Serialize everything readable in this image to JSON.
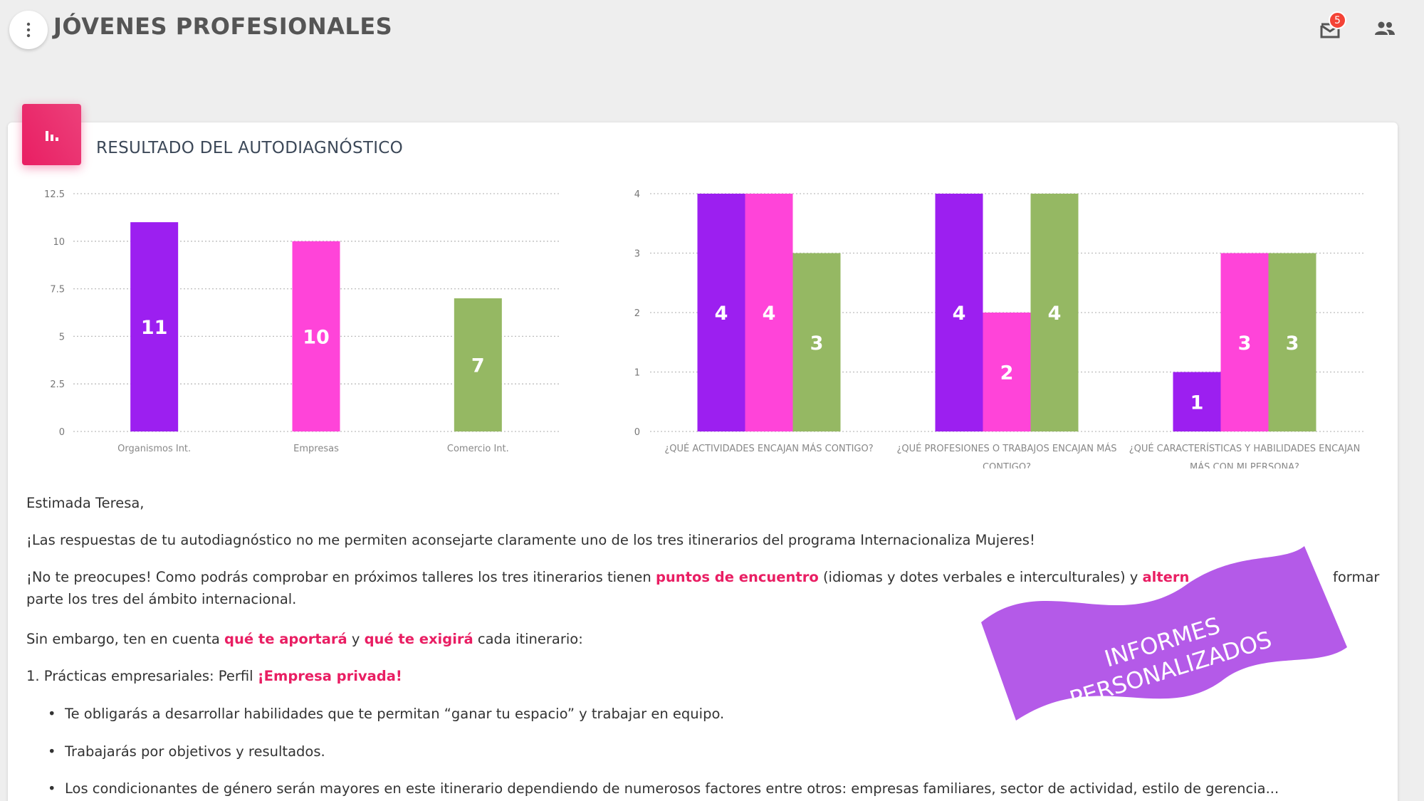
{
  "header": {
    "title": "JÓVENES PROFESIONALES",
    "mail_count": "5"
  },
  "card": {
    "title": "RESULTADO DEL AUTODIAGNÓSTICO"
  },
  "colors": {
    "purple": "#9c1ff0",
    "pink": "#ff44d9",
    "green": "#95b863",
    "accent": "#e91e63",
    "banner": "#b45ae8"
  },
  "chart_data": [
    {
      "type": "bar",
      "categories": [
        "Organismos Int.",
        "Empresas",
        "Comercio Int."
      ],
      "values": [
        11,
        10,
        7
      ],
      "colors": [
        "#9c1ff0",
        "#ff44d9",
        "#95b863"
      ],
      "ylim": [
        0,
        12.5
      ],
      "yticks": [
        "0",
        "2.5",
        "5",
        "7.5",
        "10",
        "12.5"
      ],
      "grid": true
    },
    {
      "type": "bar",
      "categories": [
        "¿QUÉ ACTIVIDADES ENCAJAN MÁS CONTIGO?",
        "¿QUÉ PROFESIONES O TRABAJOS ENCAJAN MÁS CONTIGO?",
        "¿QUÉ CARACTERÍSTICAS Y HABILIDADES ENCAJAN MÁS CON MI PERSONA?"
      ],
      "series": [
        {
          "values": [
            4,
            4,
            1
          ],
          "color": "#9c1ff0"
        },
        {
          "values": [
            4,
            2,
            3
          ],
          "color": "#ff44d9"
        },
        {
          "values": [
            3,
            4,
            3
          ],
          "color": "#95b863"
        }
      ],
      "ylim": [
        0,
        4
      ],
      "yticks": [
        "0",
        "1",
        "2",
        "3",
        "4"
      ],
      "grid": true
    }
  ],
  "letter": {
    "greeting": "Estimada Teresa,",
    "p1": "¡Las respuestas de tu autodiagnóstico no me permiten aconsejarte claramente uno de los tres itinerarios del programa Internacionaliza Mujeres!",
    "p2_a": "¡No te preocupes! Como podrás comprobar en próximos talleres los tres itinerarios tienen ",
    "p2_hl1": "puntos de encuentro",
    "p2_b": " (idiomas y dotes verbales e interculturales) y ",
    "p2_hl2": "altern",
    "p2_c": "formar",
    "p2_line2": "parte los tres del ámbito internacional.",
    "p3_a": "Sin embargo, ten en cuenta ",
    "p3_hl1": "qué te aportará",
    "p3_b": " y ",
    "p3_hl2": "qué te exigirá",
    "p3_c": " cada itinerario:",
    "p4_a": "1. Prácticas empresariales: Perfil ",
    "p4_hl": "¡Empresa privada!",
    "bullets": [
      "Te obligarás a desarrollar habilidades que te permitan “ganar tu espacio” y trabajar en equipo.",
      "Trabajarás por objetivos y resultados.",
      "Los condicionantes de género serán mayores en este itinerario dependiendo de numerosos factores entre otros: empresas familiares, sector de actividad, estilo de gerencia..."
    ]
  },
  "banner": {
    "line1": "INFORMES",
    "line2": "PERSONALIZADOS"
  }
}
